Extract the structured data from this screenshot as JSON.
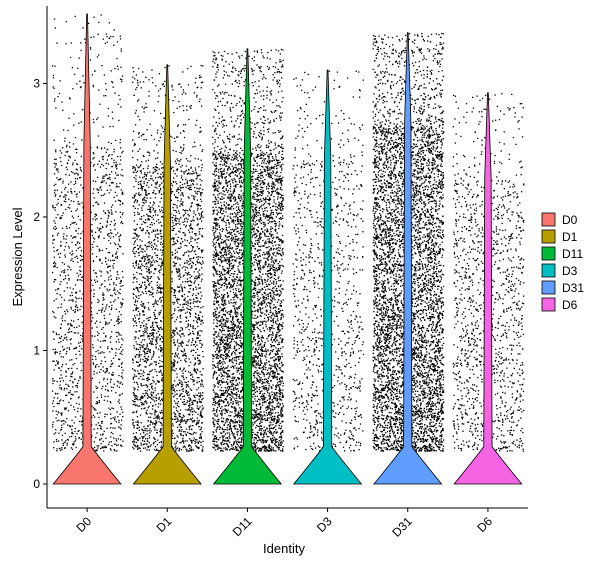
{
  "chart_data": {
    "type": "violin",
    "xlabel": "Identity",
    "ylabel": "Expression Level",
    "categories": [
      "D0",
      "D1",
      "D11",
      "D3",
      "D31",
      "D6"
    ],
    "yticks": [
      0,
      1,
      2,
      3
    ],
    "ylim": [
      -0.18,
      3.58
    ],
    "legend": {
      "position": "right",
      "entries": [
        "D0",
        "D1",
        "D11",
        "D3",
        "D31",
        "D6"
      ]
    },
    "grid": false,
    "colors": {
      "D0": "#F8766D",
      "D1": "#B79F00",
      "D11": "#00BA38",
      "D3": "#00BFC4",
      "D31": "#619CFF",
      "D6": "#F564E3"
    },
    "groups": [
      {
        "name": "D0",
        "max": 3.52,
        "n_points": 1600,
        "spread_top": 2.55
      },
      {
        "name": "D1",
        "max": 3.14,
        "n_points": 2900,
        "spread_top": 2.4
      },
      {
        "name": "D11",
        "max": 3.26,
        "n_points": 5200,
        "spread_top": 2.5
      },
      {
        "name": "D3",
        "max": 3.1,
        "n_points": 1000,
        "spread_top": 2.45
      },
      {
        "name": "D31",
        "max": 3.38,
        "n_points": 6500,
        "spread_top": 2.7
      },
      {
        "name": "D6",
        "max": 2.93,
        "n_points": 1300,
        "spread_top": 2.3
      }
    ]
  }
}
